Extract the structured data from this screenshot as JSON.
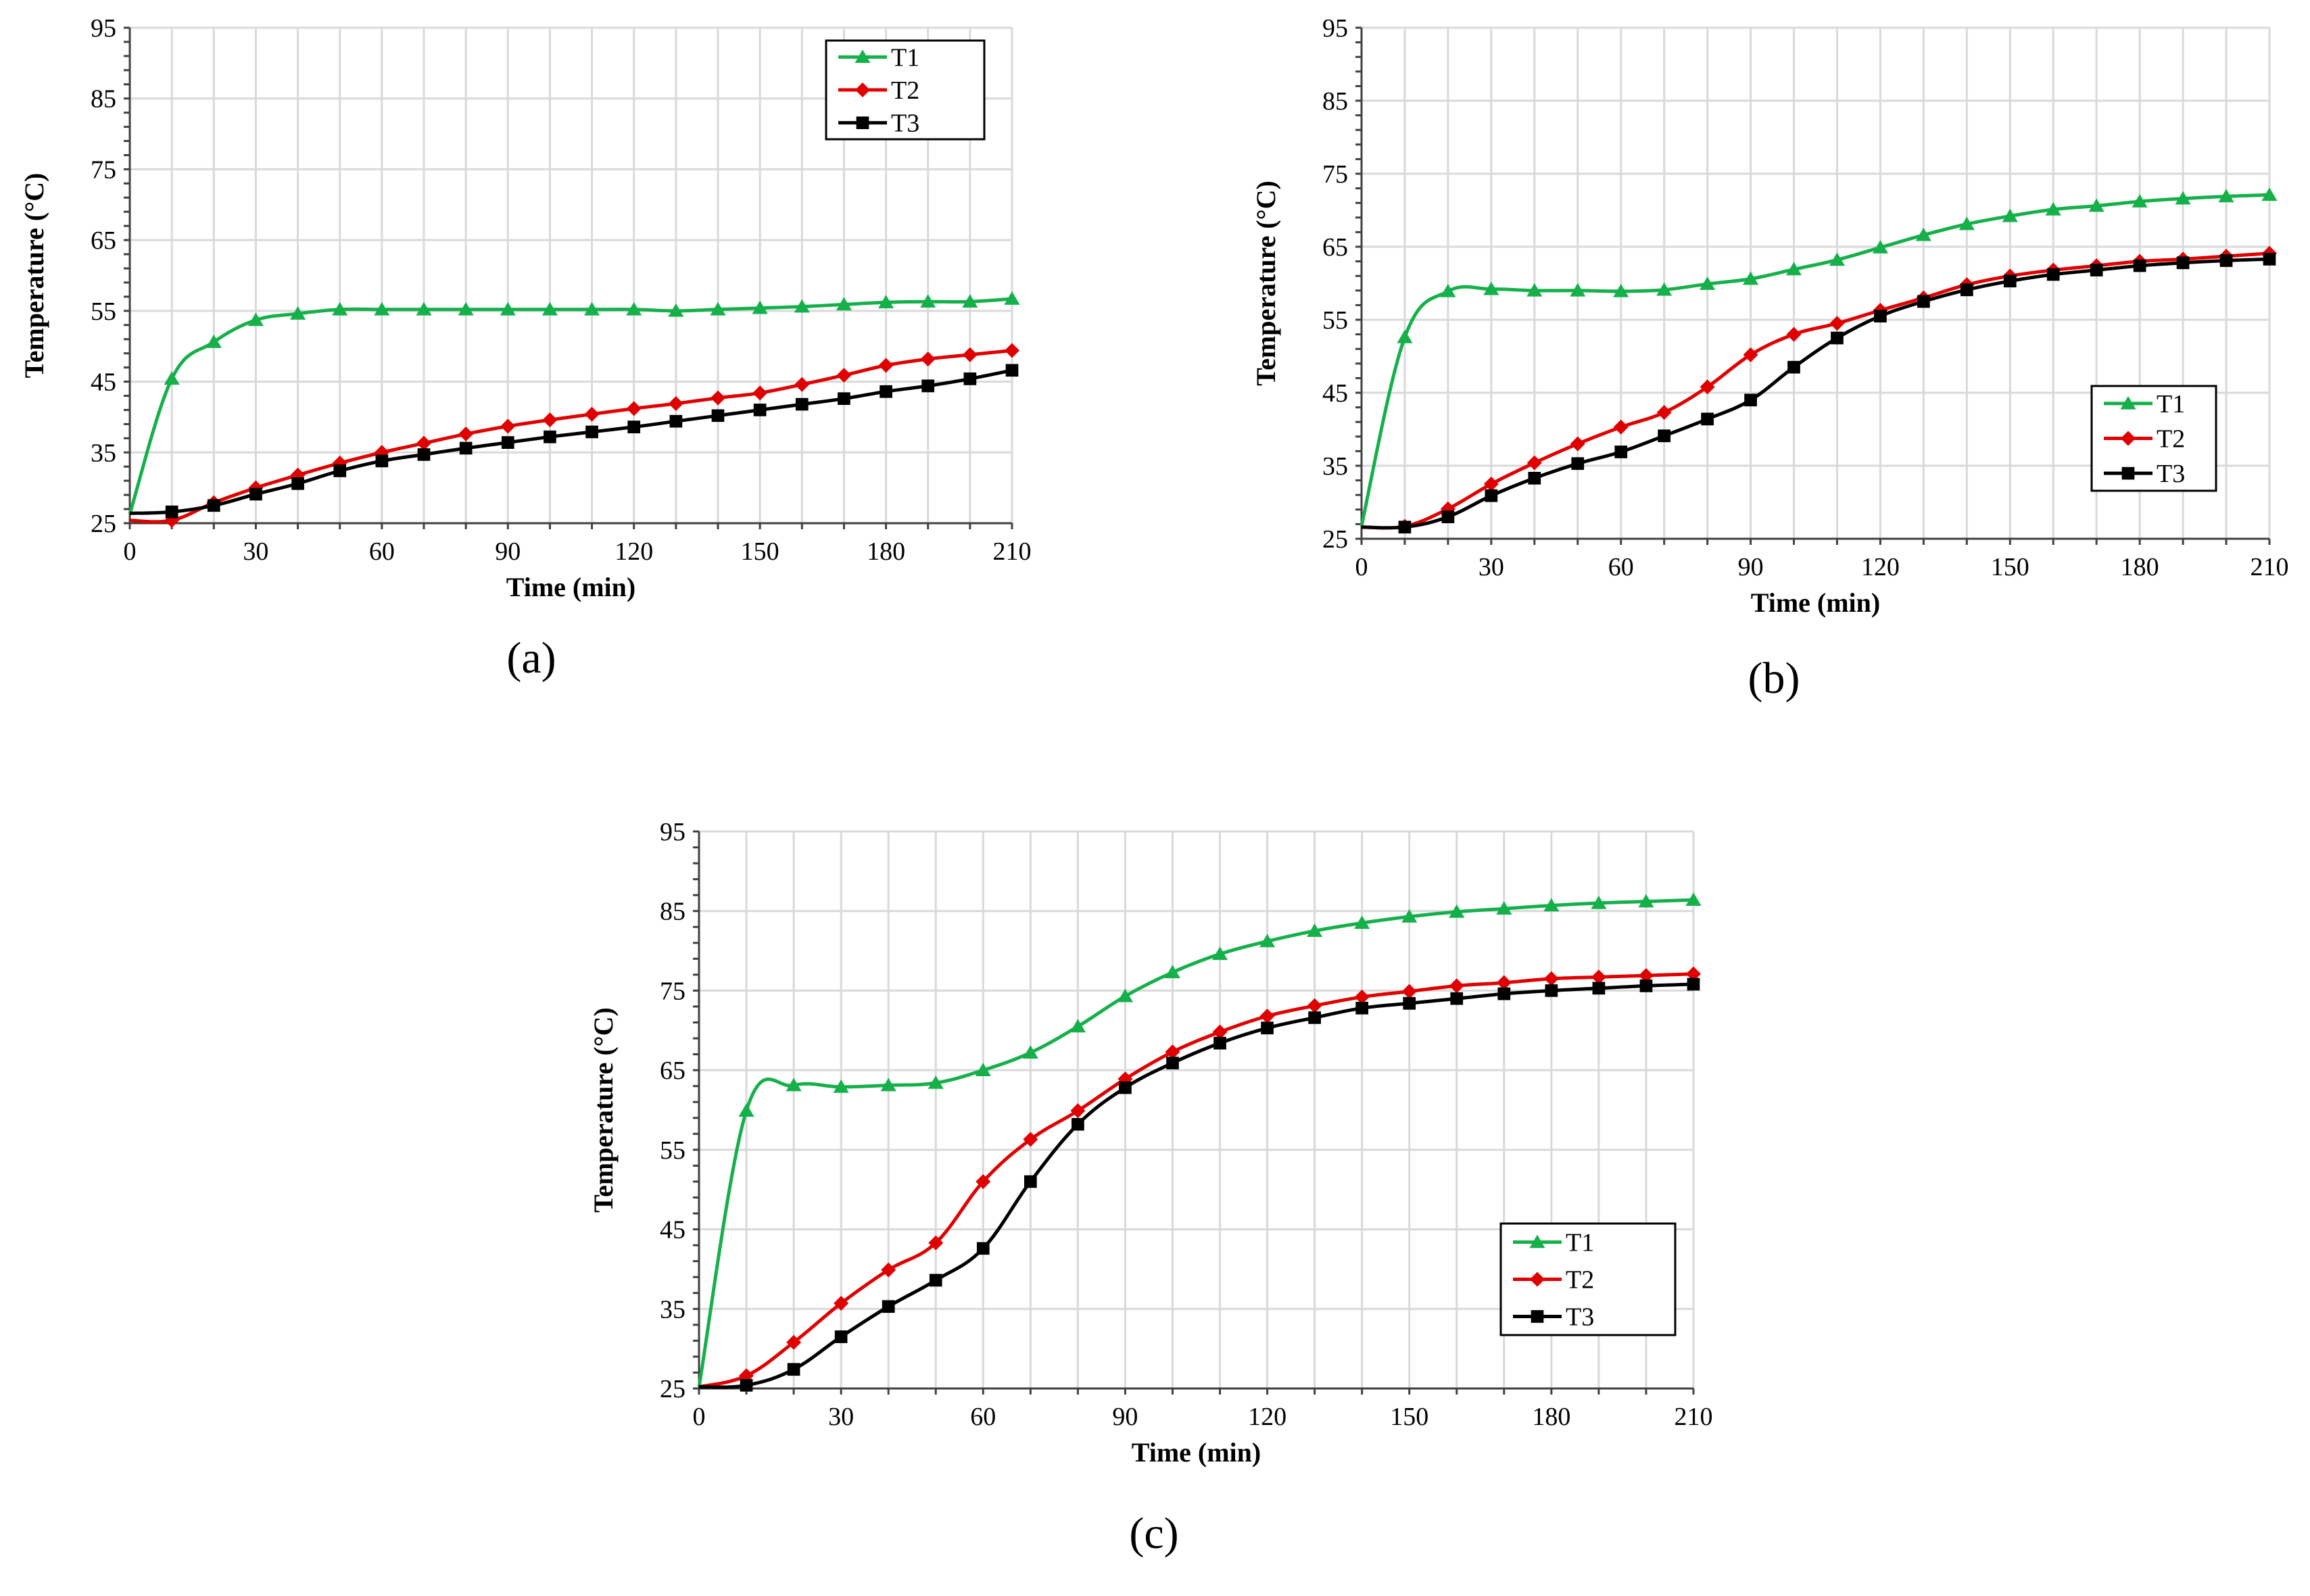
{
  "colors": {
    "T1": "#16b04a",
    "T2": "#e00000",
    "T3": "#000000"
  },
  "chart_data": [
    {
      "type": "line",
      "panel_label": "(a)",
      "xlabel": "Time (min)",
      "ylabel": "Temperature (°C)",
      "xlim": [
        0,
        210
      ],
      "ylim": [
        25,
        95
      ],
      "xticks": [
        0,
        30,
        60,
        90,
        120,
        150,
        180,
        210
      ],
      "yticks": [
        25,
        35,
        45,
        55,
        65,
        75,
        85,
        95
      ],
      "legend": "top-right",
      "x": [
        0,
        10,
        20,
        30,
        40,
        50,
        60,
        70,
        80,
        90,
        100,
        110,
        120,
        130,
        140,
        150,
        160,
        170,
        180,
        190,
        200,
        210
      ],
      "series": [
        {
          "name": "T1",
          "marker": "triangle",
          "values": [
            26.3,
            45.4,
            50.6,
            53.7,
            54.6,
            55.2,
            55.2,
            55.2,
            55.2,
            55.2,
            55.2,
            55.2,
            55.2,
            55.0,
            55.2,
            55.4,
            55.6,
            55.9,
            56.2,
            56.3,
            56.3,
            56.7
          ]
        },
        {
          "name": "T2",
          "marker": "diamond",
          "values": [
            25.4,
            25.4,
            27.9,
            30.0,
            31.8,
            33.5,
            35.0,
            36.3,
            37.6,
            38.7,
            39.6,
            40.4,
            41.2,
            41.9,
            42.7,
            43.4,
            44.6,
            45.9,
            47.3,
            48.2,
            48.8,
            49.4
          ]
        },
        {
          "name": "T3",
          "marker": "square",
          "values": [
            26.4,
            26.6,
            27.5,
            29.1,
            30.6,
            32.4,
            33.8,
            34.7,
            35.6,
            36.4,
            37.2,
            37.9,
            38.6,
            39.4,
            40.2,
            41.0,
            41.8,
            42.6,
            43.6,
            44.4,
            45.4,
            46.6
          ]
        }
      ]
    },
    {
      "type": "line",
      "panel_label": "(b)",
      "xlabel": "Time (min)",
      "ylabel": "Temperature (°C)",
      "xlim": [
        0,
        210
      ],
      "ylim": [
        25,
        95
      ],
      "xticks": [
        0,
        30,
        60,
        90,
        120,
        150,
        180,
        210
      ],
      "yticks": [
        25,
        35,
        45,
        55,
        65,
        75,
        85,
        95
      ],
      "legend": "right",
      "x": [
        0,
        10,
        20,
        30,
        40,
        50,
        60,
        70,
        80,
        90,
        100,
        110,
        120,
        130,
        140,
        150,
        160,
        170,
        180,
        190,
        200,
        210
      ],
      "series": [
        {
          "name": "T1",
          "marker": "triangle",
          "values": [
            26.8,
            52.6,
            58.9,
            59.2,
            59.0,
            59.0,
            58.9,
            59.1,
            59.9,
            60.6,
            61.9,
            63.2,
            64.9,
            66.6,
            68.1,
            69.2,
            70.1,
            70.6,
            71.2,
            71.6,
            71.9,
            72.1
          ]
        },
        {
          "name": "T2",
          "marker": "diamond",
          "values": [
            26.6,
            26.7,
            29.1,
            32.5,
            35.4,
            38.0,
            40.3,
            42.3,
            45.8,
            50.2,
            53.0,
            54.5,
            56.3,
            58.0,
            59.8,
            61.0,
            61.8,
            62.4,
            63.0,
            63.3,
            63.7,
            64.1
          ]
        },
        {
          "name": "T3",
          "marker": "square",
          "values": [
            26.6,
            26.6,
            28.0,
            30.9,
            33.3,
            35.3,
            36.9,
            39.1,
            41.4,
            44.0,
            48.5,
            52.5,
            55.5,
            57.5,
            59.1,
            60.3,
            61.2,
            61.8,
            62.4,
            62.8,
            63.1,
            63.3
          ]
        }
      ]
    },
    {
      "type": "line",
      "panel_label": "(c)",
      "xlabel": "Time (min)",
      "ylabel": "Temperature (°C)",
      "xlim": [
        0,
        210
      ],
      "ylim": [
        25,
        95
      ],
      "xticks": [
        0,
        30,
        60,
        90,
        120,
        150,
        180,
        210
      ],
      "yticks": [
        25,
        35,
        45,
        55,
        65,
        75,
        85,
        95
      ],
      "legend": "bottom-right",
      "x": [
        0,
        10,
        20,
        30,
        40,
        50,
        60,
        70,
        80,
        90,
        100,
        110,
        120,
        130,
        140,
        150,
        160,
        170,
        180,
        190,
        200,
        210
      ],
      "series": [
        {
          "name": "T1",
          "marker": "triangle",
          "values": [
            25.2,
            59.9,
            63.1,
            62.9,
            63.1,
            63.4,
            65.0,
            67.2,
            70.5,
            74.3,
            77.3,
            79.6,
            81.2,
            82.5,
            83.5,
            84.3,
            84.9,
            85.3,
            85.7,
            86.0,
            86.2,
            86.4
          ]
        },
        {
          "name": "T2",
          "marker": "diamond",
          "values": [
            25.2,
            26.6,
            30.8,
            35.7,
            39.9,
            43.3,
            51.0,
            56.3,
            59.9,
            63.9,
            67.3,
            69.8,
            71.8,
            73.1,
            74.2,
            74.9,
            75.6,
            76.0,
            76.5,
            76.7,
            76.9,
            77.1
          ]
        },
        {
          "name": "T3",
          "marker": "square",
          "values": [
            25.2,
            25.4,
            27.4,
            31.5,
            35.3,
            38.6,
            42.6,
            51.0,
            58.2,
            62.8,
            65.9,
            68.4,
            70.3,
            71.6,
            72.8,
            73.4,
            74.0,
            74.6,
            75.0,
            75.3,
            75.6,
            75.8
          ]
        }
      ]
    }
  ]
}
